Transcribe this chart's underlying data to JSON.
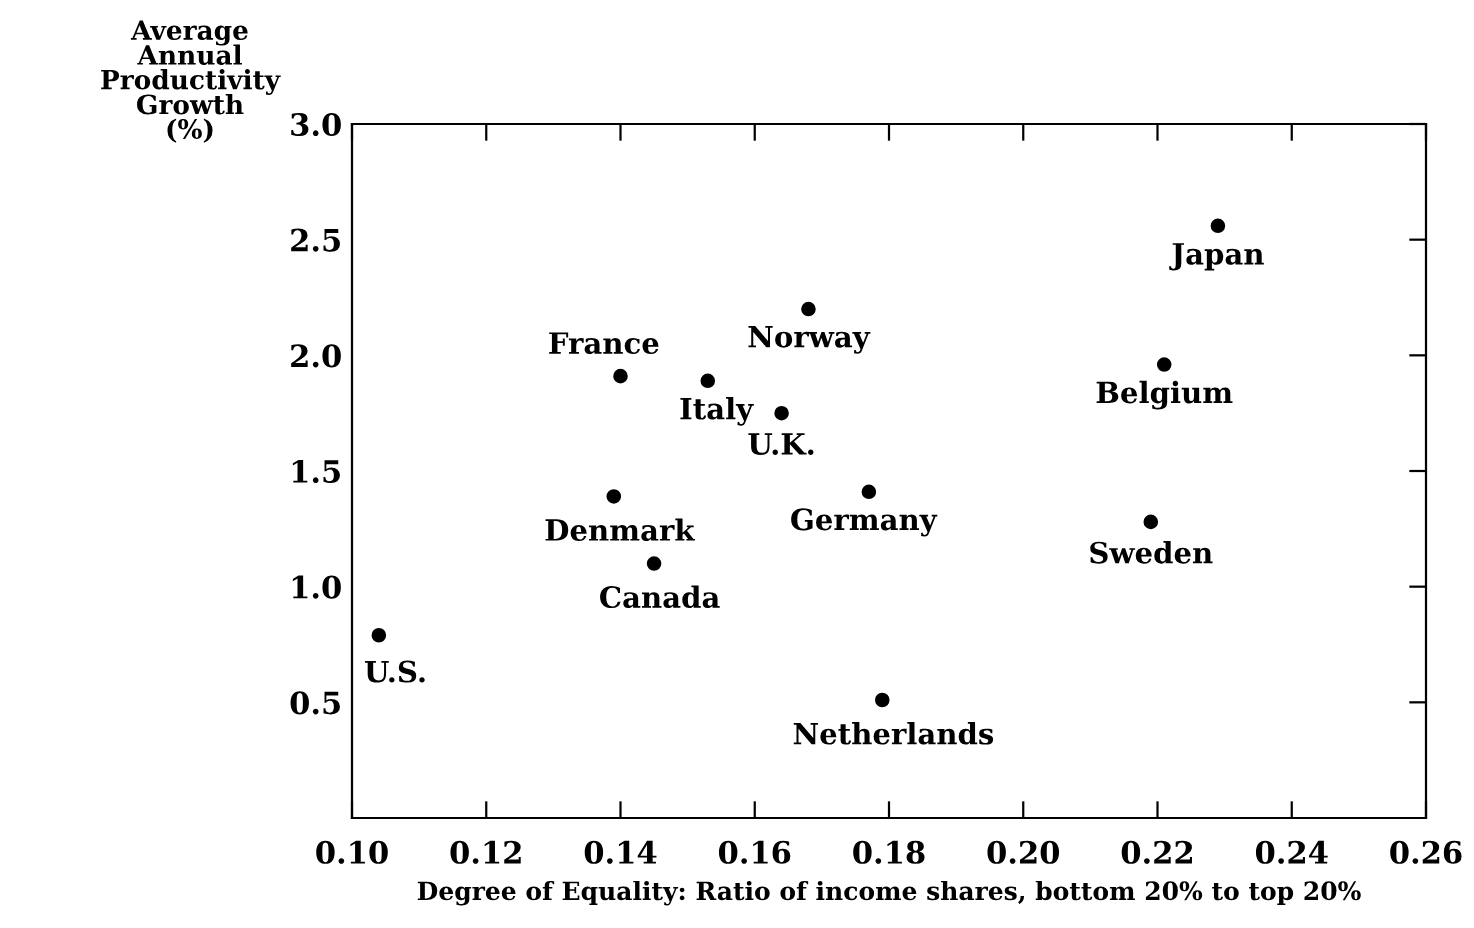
{
  "chart_data": {
    "type": "scatter",
    "xlabel": "Degree of Equality: Ratio of income shares, bottom 20% to top 20%",
    "ylabel": "Average\nAnnual\nProductivity\nGrowth\n(%)",
    "x": [
      0.104,
      0.139,
      0.14,
      0.145,
      0.153,
      0.164,
      0.168,
      0.177,
      0.179,
      0.219,
      0.221,
      0.229
    ],
    "series": [
      {
        "color": "#000000",
        "values": [
          0.79,
          1.39,
          1.91,
          1.1,
          1.89,
          1.75,
          2.2,
          1.41,
          0.51,
          1.28,
          1.96,
          2.56
        ]
      }
    ],
    "annotations": [
      {
        "text": "U.S.",
        "x": 0.104,
        "y": 0.79
      },
      {
        "text": "Denmark",
        "x": 0.139,
        "y": 1.39
      },
      {
        "text": "France",
        "x": 0.14,
        "y": 1.91
      },
      {
        "text": "Canada",
        "x": 0.145,
        "y": 1.1
      },
      {
        "text": "Italy",
        "x": 0.153,
        "y": 1.89
      },
      {
        "text": "U.K.",
        "x": 0.164,
        "y": 1.75
      },
      {
        "text": "Norway",
        "x": 0.168,
        "y": 2.2
      },
      {
        "text": "Germany",
        "x": 0.177,
        "y": 1.41
      },
      {
        "text": "Netherlands",
        "x": 0.179,
        "y": 0.51
      },
      {
        "text": "Sweden",
        "x": 0.219,
        "y": 1.28
      },
      {
        "text": "Belgium",
        "x": 0.221,
        "y": 1.96
      },
      {
        "text": "Japan",
        "x": 0.229,
        "y": 2.56
      }
    ],
    "xlim": [
      0.1,
      0.26
    ],
    "xticks": [
      {
        "value": 0.1,
        "label": "0.10"
      },
      0.12,
      0.14,
      0.16,
      0.18,
      {
        "value": 0.2,
        "label": "0.20"
      },
      0.22,
      0.24,
      0.26
    ],
    "ylim": [
      0,
      3.0
    ],
    "yticks": [
      0.5,
      {
        "value": 1.0,
        "label": "1.0"
      },
      1.5,
      {
        "value": 2.0,
        "label": "2.0"
      },
      2.5,
      {
        "value": 3.0,
        "label": "3.0"
      }
    ],
    "marker": "circle",
    "grid": false,
    "legend": false
  }
}
